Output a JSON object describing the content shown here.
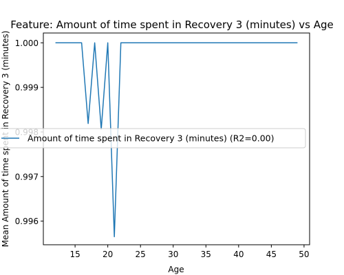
{
  "chart_data": {
    "type": "line",
    "title": "Feature: Amount of time spent in Recovery 3 (minutes) vs Age",
    "xlabel": "Age",
    "ylabel": "Mean Amount of time spent in Recovery 3 (minutes)",
    "xlim": [
      10.15,
      50.85
    ],
    "ylim": [
      0.99547,
      1.00022
    ],
    "xticks": [
      15,
      20,
      25,
      30,
      35,
      40,
      45,
      50
    ],
    "yticks": [
      0.996,
      0.997,
      0.998,
      0.999,
      1.0
    ],
    "ytick_labels": [
      "0.996",
      "0.997",
      "0.998",
      "0.999",
      "1.000"
    ],
    "legend_position": "center-left",
    "grid": false,
    "series": [
      {
        "name": "Amount of time spent in Recovery 3 (minutes) (R2=0.00)",
        "color": "#1f77b4",
        "x": [
          12,
          13,
          14,
          15,
          16,
          17,
          18,
          19,
          20,
          21,
          22,
          23,
          24,
          25,
          26,
          27,
          28,
          29,
          30,
          31,
          32,
          33,
          34,
          35,
          36,
          37,
          38,
          39,
          40,
          41,
          42,
          43,
          44,
          45,
          46,
          47,
          48,
          49
        ],
        "y": [
          1.0,
          1.0,
          1.0,
          1.0,
          1.0,
          0.99819,
          1.0,
          0.99806,
          1.0,
          0.99565,
          1.0,
          1.0,
          1.0,
          1.0,
          1.0,
          1.0,
          1.0,
          1.0,
          1.0,
          1.0,
          1.0,
          1.0,
          1.0,
          1.0,
          1.0,
          1.0,
          1.0,
          1.0,
          1.0,
          1.0,
          1.0,
          1.0,
          1.0,
          1.0,
          1.0,
          1.0,
          1.0,
          1.0
        ]
      }
    ]
  }
}
